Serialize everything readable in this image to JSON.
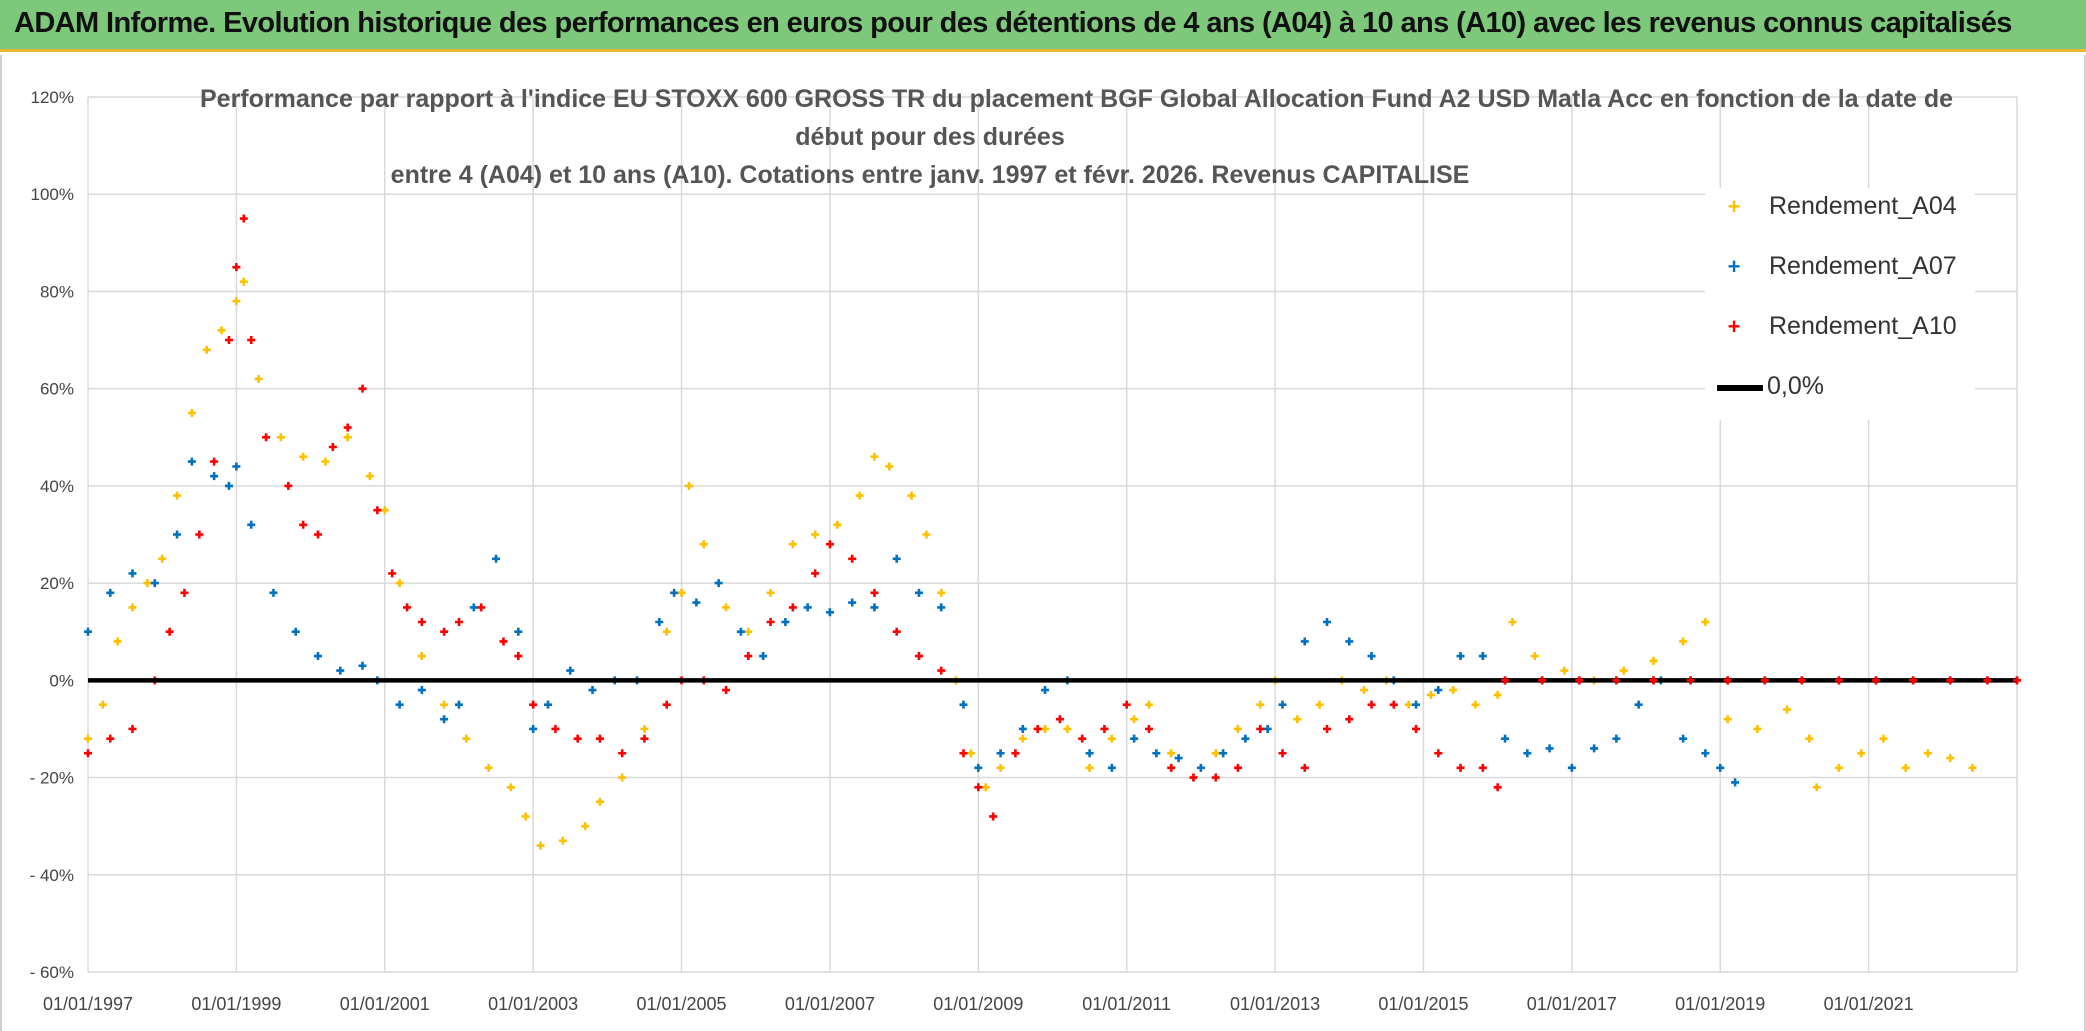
{
  "banner": {
    "title": "ADAM Informe. Evolution historique des performances en euros pour des détentions de 4 ans (A04) à 10 ans (A10) avec les revenus connus capitalisés"
  },
  "chart_data": {
    "type": "scatter",
    "title_lines": [
      "Performance par rapport à l'indice EU STOXX 600 GROSS TR  du placement BGF Global Allocation Fund A2 USD Matla Acc en fonction de la date de",
      "début pour des durées",
      "entre 4 (A04) et 10 ans (A10). Cotations entre janv. 1997 et févr. 2026. Revenus CAPITALISE"
    ],
    "xlabel": "",
    "ylabel": "",
    "x_unit": "year",
    "xlim": [
      1997.0,
      2023.0
    ],
    "ylim": [
      -60,
      120
    ],
    "y_ticks": [
      120,
      100,
      80,
      60,
      40,
      20,
      0,
      -20,
      -40,
      -60
    ],
    "y_tick_labels": [
      "120%",
      "100%",
      "80%",
      "60%",
      "40%",
      "20%",
      "0%",
      "- 20%",
      "- 40%",
      "- 60%"
    ],
    "x_ticks": [
      1997,
      1999,
      2001,
      2003,
      2005,
      2007,
      2009,
      2011,
      2013,
      2015,
      2017,
      2019,
      2021
    ],
    "x_tick_labels": [
      "01/01/1997",
      "01/01/1999",
      "01/01/2001",
      "01/01/2003",
      "01/01/2005",
      "01/01/2007",
      "01/01/2009",
      "01/01/2011",
      "01/01/2013",
      "01/01/2015",
      "01/01/2017",
      "01/01/2019",
      "01/01/2021"
    ],
    "grid": true,
    "legend_position": "top-right",
    "series": [
      {
        "name": "Rendement_A04",
        "color": "#ffc000",
        "marker": "+",
        "points": [
          [
            1997.0,
            -12
          ],
          [
            1997.2,
            -5
          ],
          [
            1997.4,
            8
          ],
          [
            1997.6,
            15
          ],
          [
            1997.8,
            20
          ],
          [
            1998.0,
            25
          ],
          [
            1998.2,
            38
          ],
          [
            1998.4,
            55
          ],
          [
            1998.6,
            68
          ],
          [
            1998.8,
            72
          ],
          [
            1999.0,
            78
          ],
          [
            1999.1,
            82
          ],
          [
            1999.3,
            62
          ],
          [
            1999.6,
            50
          ],
          [
            1999.9,
            46
          ],
          [
            2000.2,
            45
          ],
          [
            2000.5,
            50
          ],
          [
            2000.8,
            42
          ],
          [
            2001.0,
            35
          ],
          [
            2001.2,
            20
          ],
          [
            2001.5,
            5
          ],
          [
            2001.8,
            -5
          ],
          [
            2002.1,
            -12
          ],
          [
            2002.4,
            -18
          ],
          [
            2002.7,
            -22
          ],
          [
            2002.9,
            -28
          ],
          [
            2003.1,
            -34
          ],
          [
            2003.4,
            -33
          ],
          [
            2003.7,
            -30
          ],
          [
            2003.9,
            -25
          ],
          [
            2004.2,
            -20
          ],
          [
            2004.5,
            -10
          ],
          [
            2004.8,
            10
          ],
          [
            2005.0,
            18
          ],
          [
            2005.1,
            40
          ],
          [
            2005.3,
            28
          ],
          [
            2005.6,
            15
          ],
          [
            2005.9,
            10
          ],
          [
            2006.2,
            18
          ],
          [
            2006.5,
            28
          ],
          [
            2006.8,
            30
          ],
          [
            2007.1,
            32
          ],
          [
            2007.4,
            38
          ],
          [
            2007.6,
            46
          ],
          [
            2007.8,
            44
          ],
          [
            2008.1,
            38
          ],
          [
            2008.3,
            30
          ],
          [
            2008.5,
            18
          ],
          [
            2008.7,
            0
          ],
          [
            2008.9,
            -15
          ],
          [
            2009.1,
            -22
          ],
          [
            2009.3,
            -18
          ],
          [
            2009.6,
            -12
          ],
          [
            2009.9,
            -10
          ],
          [
            2010.2,
            -10
          ],
          [
            2010.5,
            -18
          ],
          [
            2010.8,
            -12
          ],
          [
            2011.1,
            -8
          ],
          [
            2011.3,
            -5
          ],
          [
            2011.6,
            -15
          ],
          [
            2011.9,
            -20
          ],
          [
            2012.2,
            -15
          ],
          [
            2012.5,
            -10
          ],
          [
            2012.8,
            -5
          ],
          [
            2013.0,
            0
          ],
          [
            2013.3,
            -8
          ],
          [
            2013.6,
            -5
          ],
          [
            2013.9,
            0
          ],
          [
            2014.2,
            -2
          ],
          [
            2014.5,
            0
          ],
          [
            2014.8,
            -5
          ],
          [
            2015.1,
            -3
          ],
          [
            2015.4,
            -2
          ],
          [
            2015.7,
            -5
          ],
          [
            2016.0,
            -3
          ],
          [
            2016.2,
            12
          ],
          [
            2016.5,
            5
          ],
          [
            2016.9,
            2
          ],
          [
            2017.3,
            0
          ],
          [
            2017.7,
            2
          ],
          [
            2018.1,
            4
          ],
          [
            2018.5,
            8
          ],
          [
            2018.8,
            12
          ],
          [
            2019.1,
            -8
          ],
          [
            2019.5,
            -10
          ],
          [
            2019.9,
            -6
          ],
          [
            2020.2,
            -12
          ],
          [
            2020.3,
            -22
          ],
          [
            2020.6,
            -18
          ],
          [
            2020.9,
            -15
          ],
          [
            2021.2,
            -12
          ],
          [
            2021.5,
            -18
          ],
          [
            2021.8,
            -15
          ],
          [
            2022.1,
            -16
          ],
          [
            2022.4,
            -18
          ]
        ]
      },
      {
        "name": "Rendement_A07",
        "color": "#0070c0",
        "marker": "+",
        "points": [
          [
            1997.0,
            10
          ],
          [
            1997.3,
            18
          ],
          [
            1997.6,
            22
          ],
          [
            1997.9,
            20
          ],
          [
            1998.2,
            30
          ],
          [
            1998.4,
            45
          ],
          [
            1998.7,
            42
          ],
          [
            1998.9,
            40
          ],
          [
            1999.0,
            44
          ],
          [
            1999.2,
            32
          ],
          [
            1999.5,
            18
          ],
          [
            1999.8,
            10
          ],
          [
            2000.1,
            5
          ],
          [
            2000.4,
            2
          ],
          [
            2000.7,
            3
          ],
          [
            2000.9,
            0
          ],
          [
            2001.2,
            -5
          ],
          [
            2001.5,
            -2
          ],
          [
            2001.8,
            -8
          ],
          [
            2002.0,
            -5
          ],
          [
            2002.2,
            15
          ],
          [
            2002.5,
            25
          ],
          [
            2002.8,
            10
          ],
          [
            2003.0,
            -10
          ],
          [
            2003.2,
            -5
          ],
          [
            2003.5,
            2
          ],
          [
            2003.8,
            -2
          ],
          [
            2004.1,
            0
          ],
          [
            2004.4,
            0
          ],
          [
            2004.7,
            12
          ],
          [
            2004.9,
            18
          ],
          [
            2005.2,
            16
          ],
          [
            2005.5,
            20
          ],
          [
            2005.8,
            10
          ],
          [
            2006.1,
            5
          ],
          [
            2006.4,
            12
          ],
          [
            2006.7,
            15
          ],
          [
            2007.0,
            14
          ],
          [
            2007.3,
            16
          ],
          [
            2007.6,
            15
          ],
          [
            2007.9,
            25
          ],
          [
            2008.2,
            18
          ],
          [
            2008.5,
            15
          ],
          [
            2008.8,
            -5
          ],
          [
            2009.0,
            -18
          ],
          [
            2009.3,
            -15
          ],
          [
            2009.6,
            -10
          ],
          [
            2009.9,
            -2
          ],
          [
            2010.2,
            0
          ],
          [
            2010.5,
            -15
          ],
          [
            2010.8,
            -18
          ],
          [
            2011.1,
            -12
          ],
          [
            2011.4,
            -15
          ],
          [
            2011.7,
            -16
          ],
          [
            2012.0,
            -18
          ],
          [
            2012.3,
            -15
          ],
          [
            2012.6,
            -12
          ],
          [
            2012.9,
            -10
          ],
          [
            2013.1,
            -5
          ],
          [
            2013.4,
            8
          ],
          [
            2013.7,
            12
          ],
          [
            2014.0,
            8
          ],
          [
            2014.3,
            5
          ],
          [
            2014.6,
            0
          ],
          [
            2014.9,
            -5
          ],
          [
            2015.2,
            -2
          ],
          [
            2015.5,
            5
          ],
          [
            2015.8,
            5
          ],
          [
            2016.1,
            -12
          ],
          [
            2016.4,
            -15
          ],
          [
            2016.7,
            -14
          ],
          [
            2017.0,
            -18
          ],
          [
            2017.3,
            -14
          ],
          [
            2017.6,
            -12
          ],
          [
            2017.9,
            -5
          ],
          [
            2018.2,
            0
          ],
          [
            2018.5,
            -12
          ],
          [
            2018.8,
            -15
          ],
          [
            2019.0,
            -18
          ],
          [
            2019.2,
            -21
          ]
        ]
      },
      {
        "name": "Rendement_A10",
        "color": "#ff0000",
        "marker": "+",
        "points": [
          [
            1997.0,
            -15
          ],
          [
            1997.3,
            -12
          ],
          [
            1997.6,
            -10
          ],
          [
            1997.9,
            0
          ],
          [
            1998.1,
            10
          ],
          [
            1998.3,
            18
          ],
          [
            1998.5,
            30
          ],
          [
            1998.7,
            45
          ],
          [
            1998.9,
            70
          ],
          [
            1999.0,
            85
          ],
          [
            1999.1,
            95
          ],
          [
            1999.2,
            70
          ],
          [
            1999.4,
            50
          ],
          [
            1999.7,
            40
          ],
          [
            1999.9,
            32
          ],
          [
            2000.1,
            30
          ],
          [
            2000.3,
            48
          ],
          [
            2000.5,
            52
          ],
          [
            2000.7,
            60
          ],
          [
            2000.9,
            35
          ],
          [
            2001.1,
            22
          ],
          [
            2001.3,
            15
          ],
          [
            2001.5,
            12
          ],
          [
            2001.8,
            10
          ],
          [
            2002.0,
            12
          ],
          [
            2002.3,
            15
          ],
          [
            2002.6,
            8
          ],
          [
            2002.8,
            5
          ],
          [
            2003.0,
            -5
          ],
          [
            2003.3,
            -10
          ],
          [
            2003.6,
            -12
          ],
          [
            2003.9,
            -12
          ],
          [
            2004.2,
            -15
          ],
          [
            2004.5,
            -12
          ],
          [
            2004.8,
            -5
          ],
          [
            2005.0,
            0
          ],
          [
            2005.3,
            0
          ],
          [
            2005.6,
            -2
          ],
          [
            2005.9,
            5
          ],
          [
            2006.2,
            12
          ],
          [
            2006.5,
            15
          ],
          [
            2006.8,
            22
          ],
          [
            2007.0,
            28
          ],
          [
            2007.3,
            25
          ],
          [
            2007.6,
            18
          ],
          [
            2007.9,
            10
          ],
          [
            2008.2,
            5
          ],
          [
            2008.5,
            2
          ],
          [
            2008.8,
            -15
          ],
          [
            2009.0,
            -22
          ],
          [
            2009.2,
            -28
          ],
          [
            2009.5,
            -15
          ],
          [
            2009.8,
            -10
          ],
          [
            2010.1,
            -8
          ],
          [
            2010.4,
            -12
          ],
          [
            2010.7,
            -10
          ],
          [
            2011.0,
            -5
          ],
          [
            2011.3,
            -10
          ],
          [
            2011.6,
            -18
          ],
          [
            2011.9,
            -20
          ],
          [
            2012.2,
            -20
          ],
          [
            2012.5,
            -18
          ],
          [
            2012.8,
            -10
          ],
          [
            2013.1,
            -15
          ],
          [
            2013.4,
            -18
          ],
          [
            2013.7,
            -10
          ],
          [
            2014.0,
            -8
          ],
          [
            2014.3,
            -5
          ],
          [
            2014.6,
            -5
          ],
          [
            2014.9,
            -10
          ],
          [
            2015.2,
            -15
          ],
          [
            2015.5,
            -18
          ],
          [
            2015.8,
            -18
          ],
          [
            2016.0,
            -22
          ],
          [
            2016.1,
            0
          ],
          [
            2016.6,
            0
          ],
          [
            2017.1,
            0
          ],
          [
            2017.6,
            0
          ],
          [
            2018.1,
            0
          ],
          [
            2018.6,
            0
          ],
          [
            2019.1,
            0
          ],
          [
            2019.6,
            0
          ],
          [
            2020.1,
            0
          ],
          [
            2020.6,
            0
          ],
          [
            2021.1,
            0
          ],
          [
            2021.6,
            0
          ],
          [
            2022.1,
            0
          ],
          [
            2022.6,
            0
          ],
          [
            2023.0,
            0
          ]
        ]
      }
    ],
    "reference_line": {
      "name": "0,0%",
      "y": 0,
      "color": "#000000"
    }
  }
}
